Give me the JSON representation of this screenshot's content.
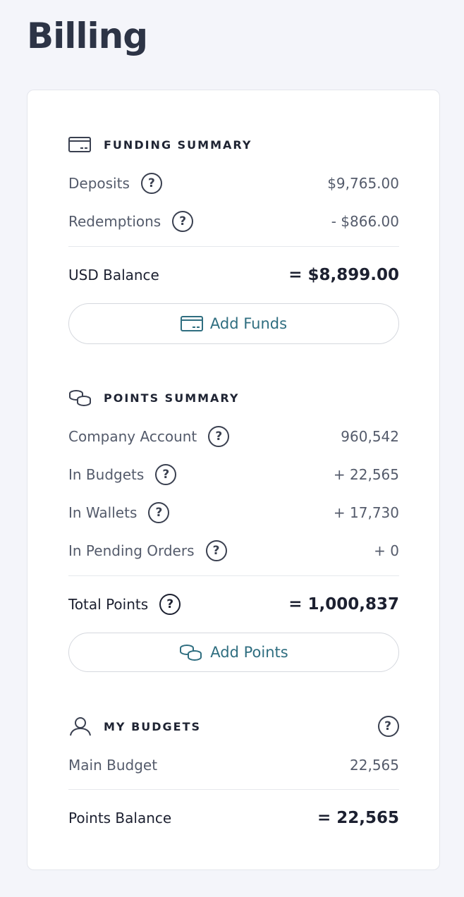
{
  "page": {
    "title": "Billing"
  },
  "funding": {
    "heading": "FUNDING SUMMARY",
    "icon": "credit-card-icon",
    "rows": [
      {
        "label": "Deposits",
        "value": "$9,765.00"
      },
      {
        "label": "Redemptions",
        "value": "- $866.00"
      }
    ],
    "total": {
      "label": "USD Balance",
      "value": "= $8,899.00"
    },
    "button": "Add Funds"
  },
  "points": {
    "heading": "POINTS SUMMARY",
    "icon": "coins-icon",
    "rows": [
      {
        "label": "Company Account",
        "value": "960,542"
      },
      {
        "label": "In Budgets",
        "value": "+ 22,565"
      },
      {
        "label": "In Wallets",
        "value": "+ 17,730"
      },
      {
        "label": "In Pending Orders",
        "value": "+ 0"
      }
    ],
    "total": {
      "label": "Total Points",
      "value": "= 1,000,837"
    },
    "button": "Add Points"
  },
  "budgets": {
    "heading": "MY BUDGETS",
    "icon": "user-icon",
    "rows": [
      {
        "label": "Main Budget",
        "value": "22,565"
      }
    ],
    "total": {
      "label": "Points Balance",
      "value": "= 22,565"
    }
  },
  "help_glyph": "?",
  "colors": {
    "accent": "#2f6e80",
    "text": "#1c2030",
    "muted": "#545b6b",
    "background": "#f4f5fa"
  }
}
